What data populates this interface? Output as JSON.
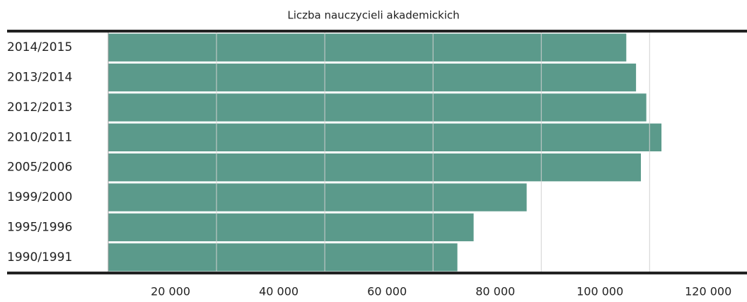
{
  "chart_data": {
    "type": "barh",
    "title": "Liczba nauczycieli akademickich",
    "categories": [
      "2014/2015",
      "2013/2014",
      "2012/2013",
      "2010/2011",
      "2005/2006",
      "1999/2000",
      "1995/1996",
      "1990/1991"
    ],
    "values": [
      95700,
      97500,
      99400,
      102200,
      98400,
      77300,
      67500,
      64500
    ],
    "color": "#5b9a8b",
    "xlim": [
      0,
      118000
    ],
    "xticks": [
      {
        "value": 20000,
        "label": "20 000"
      },
      {
        "value": 40000,
        "label": "40 000"
      },
      {
        "value": 60000,
        "label": "60 000"
      },
      {
        "value": 80000,
        "label": "80 000"
      },
      {
        "value": 100000,
        "label": "100 000"
      },
      {
        "value": 120000,
        "label": "120 000"
      }
    ],
    "grid": true
  }
}
